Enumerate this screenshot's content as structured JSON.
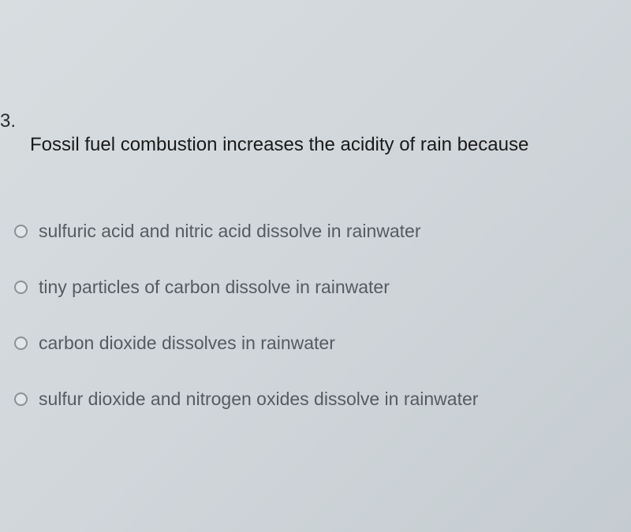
{
  "question": {
    "number": "3.",
    "text": "Fossil fuel combustion increases the acidity of rain because"
  },
  "options": [
    {
      "label": "sulfuric acid and nitric acid dissolve in rainwater"
    },
    {
      "label": "tiny particles of carbon dissolve in rainwater"
    },
    {
      "label": "carbon dioxide dissolves in rainwater"
    },
    {
      "label": "sulfur dioxide and nitrogen oxides dissolve in rainwater"
    }
  ],
  "styling": {
    "background_gradient_from": "#d8dde0",
    "background_gradient_to": "#c5ccd1",
    "question_number_color": "#2a2a2a",
    "question_text_color": "#1a1a1a",
    "option_text_color": "#555c61",
    "radio_border_color": "#8a9298",
    "radio_bg_color": "#e2e6e9",
    "question_fontsize": 24,
    "option_fontsize": 23,
    "option_spacing": 44
  }
}
